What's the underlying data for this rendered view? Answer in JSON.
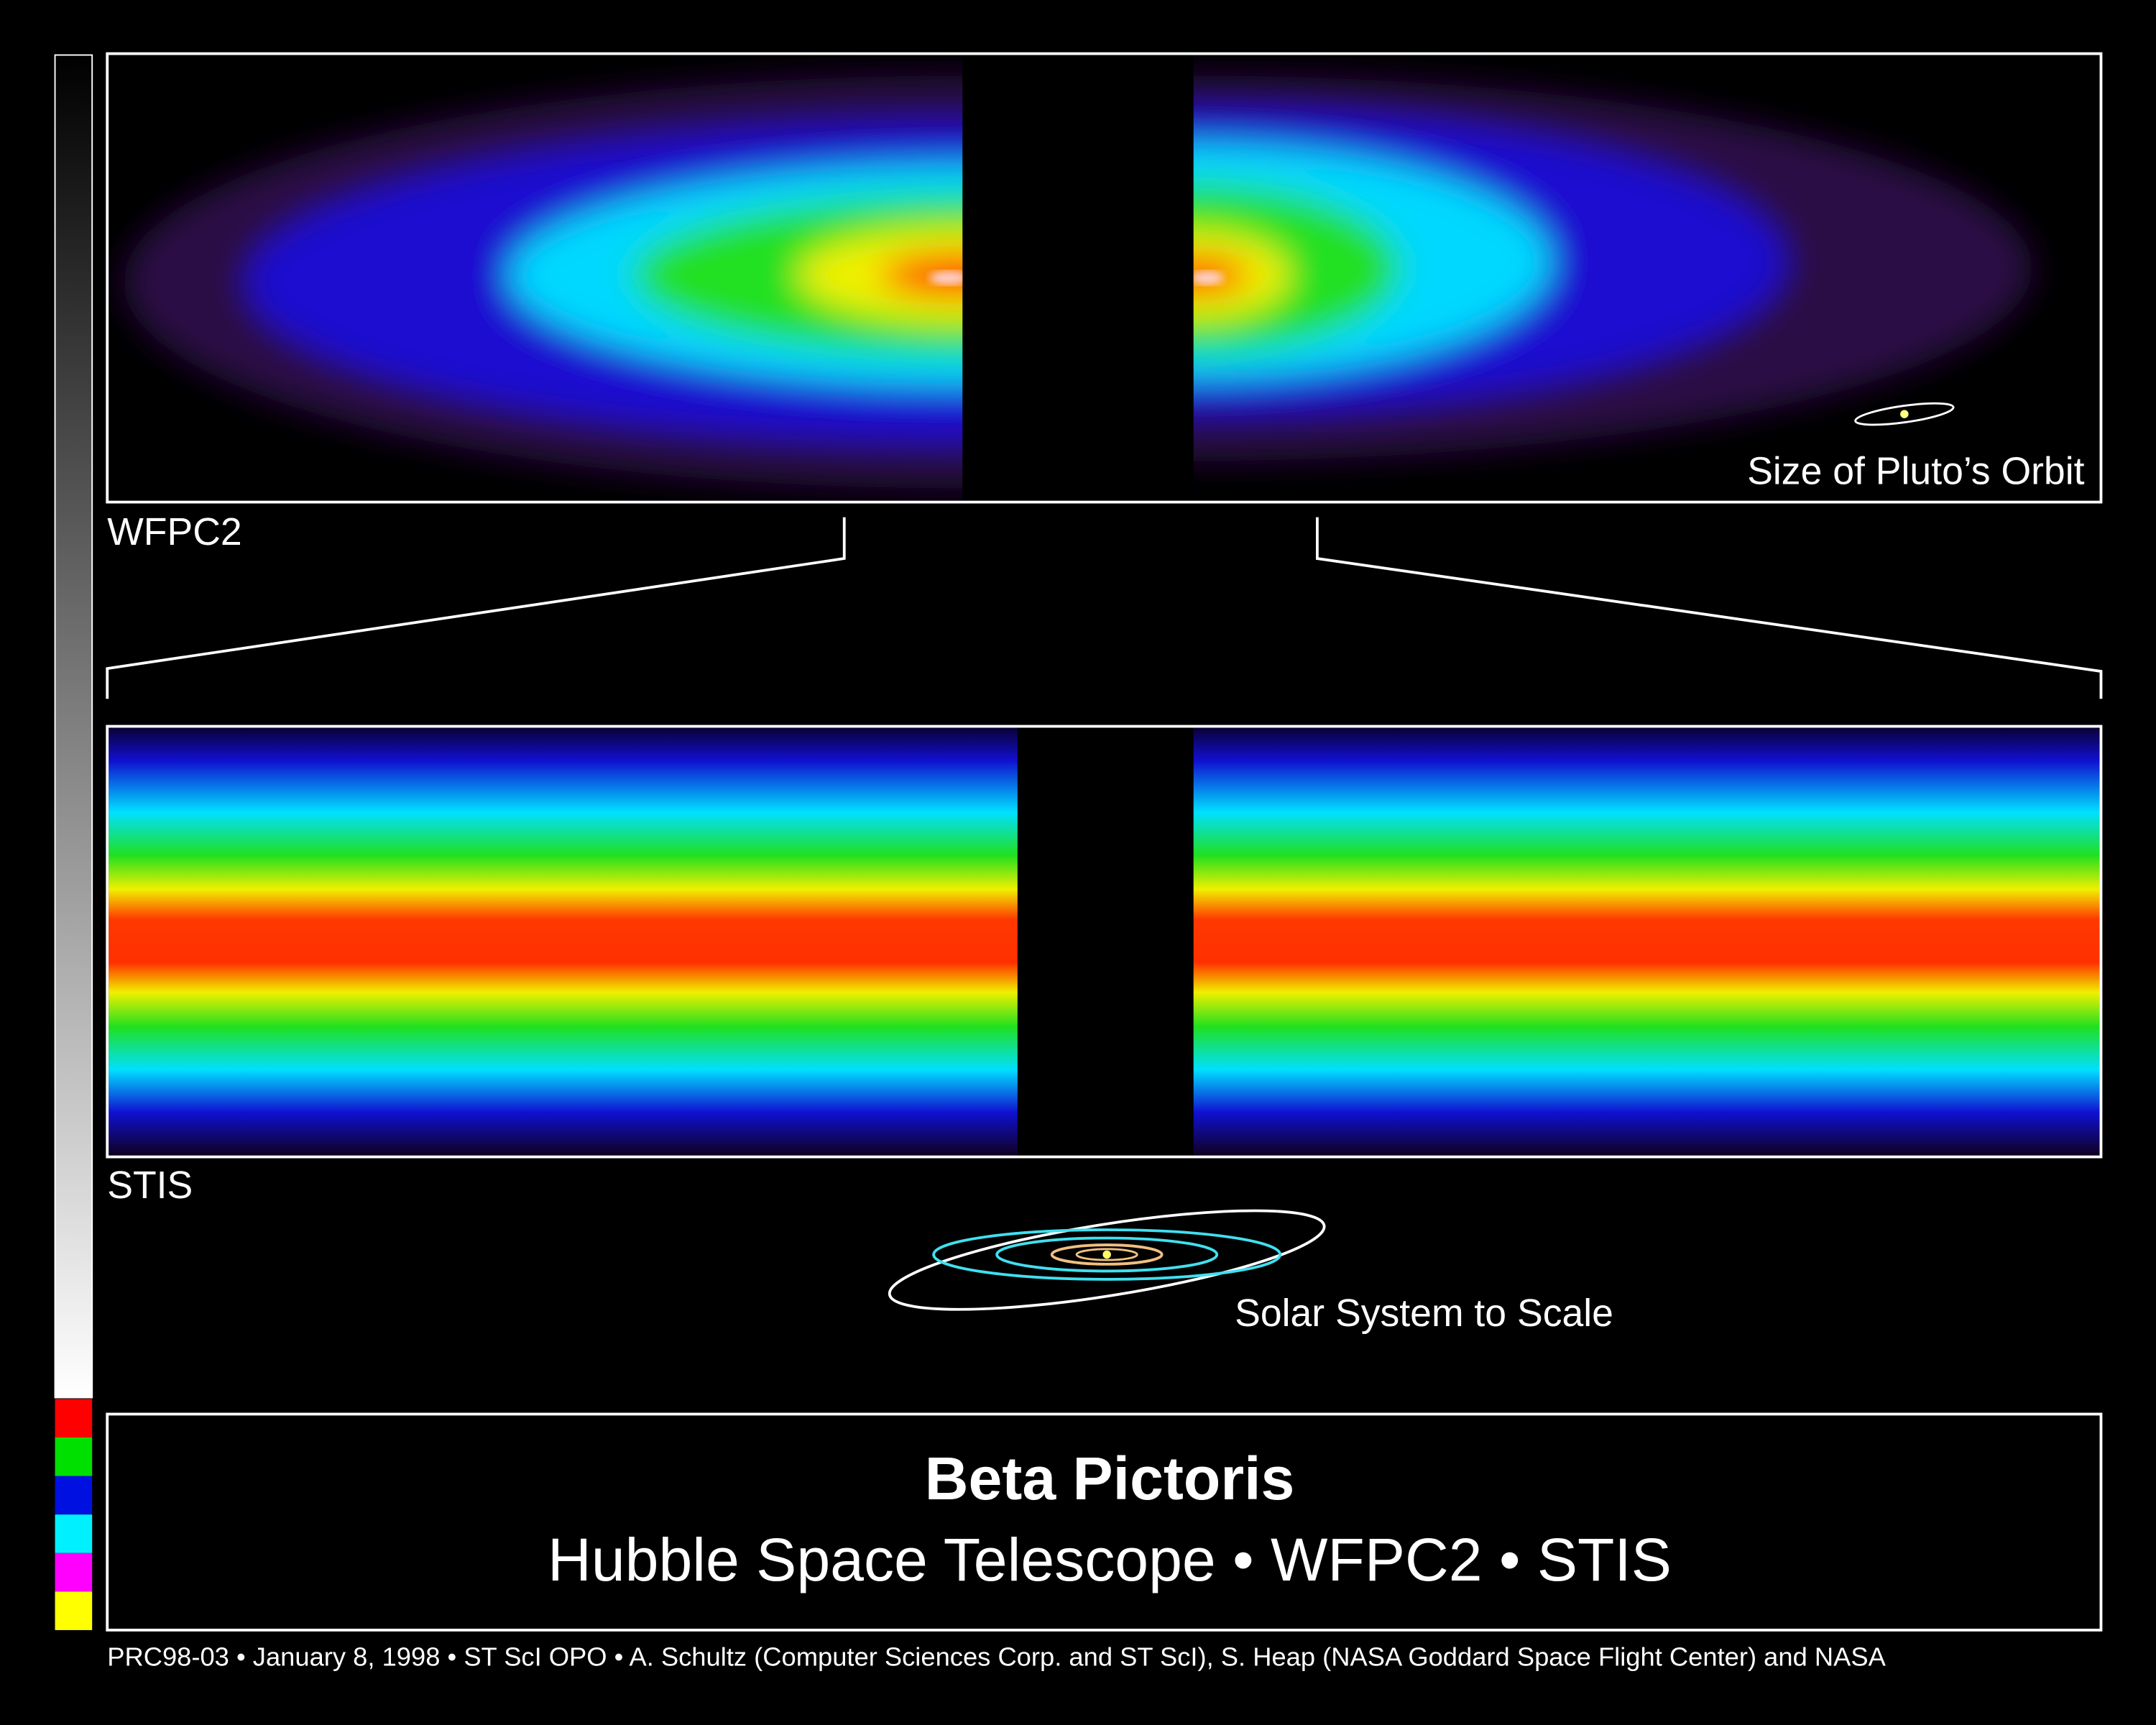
{
  "panels": {
    "wfpc2": {
      "label": "WFPC2",
      "scale_label": "Size of Pluto’s Orbit"
    },
    "stis": {
      "label": "STIS",
      "scale_label": "Solar System to Scale"
    }
  },
  "title": "Beta Pictoris",
  "subtitle": "Hubble Space Telescope • WFPC2 • STIS",
  "credit": "PRC98-03 • January 8, 1998 • ST ScI OPO • A. Schultz (Computer Sciences Corp. and ST ScI), S. Heap (NASA Goddard Space Flight Center) and NASA"
}
